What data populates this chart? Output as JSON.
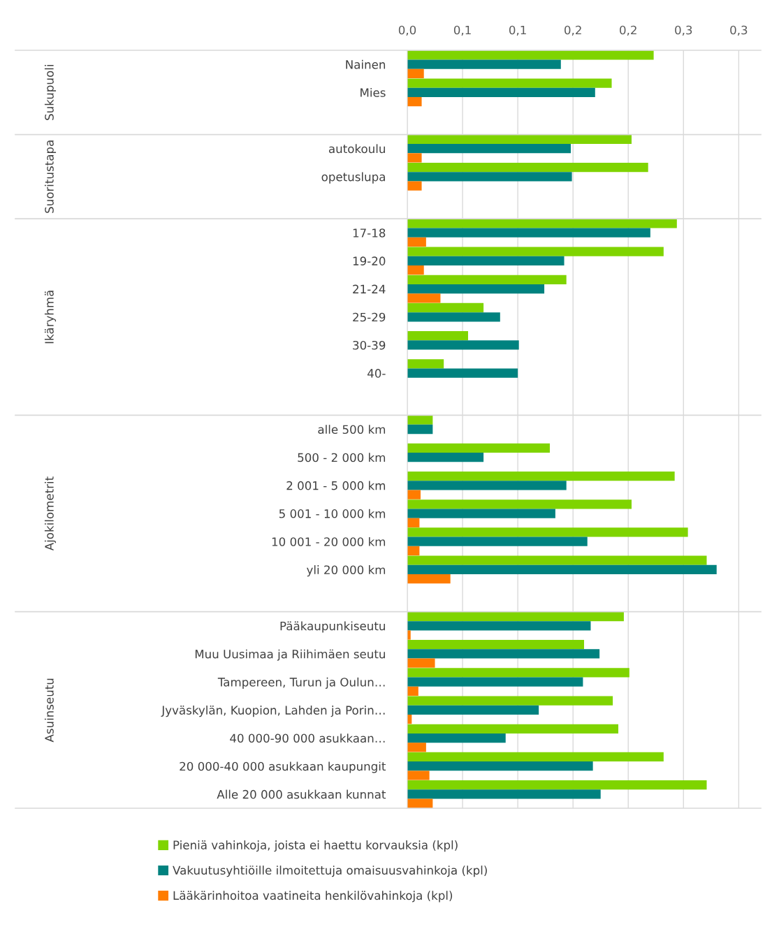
{
  "chart_data": {
    "type": "bar",
    "orientation": "horizontal",
    "categories": [
      "Nainen",
      "Mies",
      null,
      "autokoulu",
      "opetuslupa",
      null,
      "17-18",
      "19-20",
      "21-24",
      "25-29",
      "30-39",
      "40-",
      null,
      "alle 500 km",
      "500 - 2 000 km",
      "2 001 - 5 000 km",
      "5 001 - 10 000 km",
      "10 001 - 20 000 km",
      "yli 20 000 km",
      null,
      "Pääkaupunkiseutu",
      "Muu Uusimaa ja Riihimäen seutu",
      "Tampereen, Turun ja Oulun…",
      "Jyväskylän, Kuopion, Lahden ja Porin…",
      "40 000-90 000 asukkaan…",
      "20 000-40 000 asukkaan kaupungit",
      "Alle 20 000 asukkaan kunnat"
    ],
    "series": [
      {
        "name": "Pieniä vahinkoja, joista ei haettu korvauksia (kpl)",
        "color": "#7fd400",
        "values": [
          0.223,
          0.185,
          null,
          0.203,
          0.218,
          null,
          0.244,
          0.232,
          0.144,
          0.069,
          0.055,
          0.033,
          null,
          0.023,
          0.129,
          0.242,
          0.203,
          0.254,
          0.271,
          null,
          0.196,
          0.16,
          0.201,
          0.186,
          0.191,
          0.232,
          0.271
        ]
      },
      {
        "name": "Vakuutusyhtiöille ilmoitettuja omaisuusvahinkoja (kpl)",
        "color": "#00827f",
        "values": [
          0.139,
          0.17,
          null,
          0.148,
          0.149,
          null,
          0.22,
          0.142,
          0.124,
          0.084,
          0.101,
          0.1,
          null,
          0.023,
          0.069,
          0.144,
          0.134,
          0.163,
          0.28,
          null,
          0.166,
          0.174,
          0.159,
          0.119,
          0.089,
          0.168,
          0.175
        ]
      },
      {
        "name": "Lääkärinhoitoa vaatineita henkilövahinkoja (kpl)",
        "color": "#ff7c00",
        "values": [
          0.015,
          0.013,
          null,
          0.013,
          0.013,
          null,
          0.017,
          0.015,
          0.03,
          null,
          null,
          null,
          null,
          null,
          null,
          0.012,
          0.011,
          0.011,
          0.039,
          null,
          0.003,
          0.025,
          0.01,
          0.004,
          0.017,
          0.02,
          0.023
        ]
      }
    ],
    "annotations": [
      "Sukupuoli",
      "Suoritustapa",
      "Ikäryhmä",
      "Ajokilometrit",
      "Asuinseutu"
    ],
    "xlim": [
      0,
      0.32
    ],
    "xticks": [
      {
        "value": 0,
        "label": "0,0"
      },
      {
        "value": 0.05,
        "label": "0,1"
      },
      {
        "value": 0.1,
        "label": "0,1"
      },
      {
        "value": 0.15,
        "label": "0,2"
      },
      {
        "value": 0.2,
        "label": "0,2"
      },
      {
        "value": 0.25,
        "label": "0,3"
      },
      {
        "value": 0.3,
        "label": "0,3"
      }
    ],
    "grid": "x",
    "legend": "bottom"
  }
}
